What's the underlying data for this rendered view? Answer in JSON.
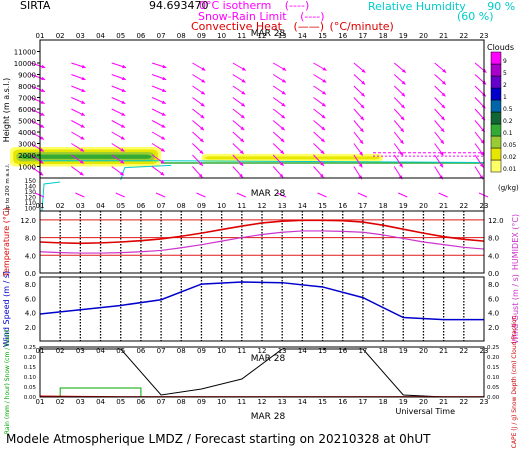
{
  "header": {
    "site": "SIRTA",
    "coords": "94.693470",
    "legend_isotherm": "0°C isotherm",
    "legend_isotherm_style": "(----)",
    "legend_snowrain": "Snow-Rain Limit",
    "legend_snowrain_style": "(----)",
    "legend_conv": "Convective Heat",
    "legend_conv_style": "(——)",
    "legend_conv_unit": "(°C/minute)",
    "legend_rh": "Relative Humidity",
    "legend_rh_90": "90 %",
    "legend_rh_60": "(60 %)"
  },
  "footer": "Modele Atmospherique LMDZ / Forecast starting on 20210328 at 0hUT",
  "xaxis": {
    "hours": [
      "01",
      "02",
      "03",
      "04",
      "05",
      "06",
      "07",
      "08",
      "09",
      "10",
      "11",
      "12",
      "13",
      "14",
      "15",
      "16",
      "17",
      "18",
      "19",
      "20",
      "21",
      "22",
      "23"
    ],
    "date_label": "MAR 28",
    "bottom_label": "Universal Time"
  },
  "colors": {
    "wind": "#ff00ff",
    "temperature": "#dd0000",
    "humidex": "#cc33cc",
    "wind_speed": "#0000cc",
    "rain": "#00aa00",
    "snow": "#0000cc",
    "cloud_fraction": "#000000",
    "cape": "#cc0000",
    "rh": "#00cccc"
  },
  "chart_data": [
    {
      "type": "heatmap",
      "panel": "cloud-height",
      "ylabel": "Height (m a.s.l.)",
      "ylabel_low": "Up to 200 m a.s.l.",
      "yticks": [
        1000,
        2000,
        3000,
        4000,
        5000,
        6000,
        7000,
        8000,
        9000,
        10000,
        11000
      ],
      "yticks_low": [
        100,
        110,
        120,
        130,
        140,
        150
      ],
      "ylim": [
        0,
        12000
      ],
      "cloud_layers": [
        {
          "hour_start": 1,
          "hour_end": 7,
          "base_m": 1000,
          "top_m": 2700,
          "core_g_kg": 0.2
        },
        {
          "hour_start": 9,
          "hour_end": 18,
          "base_m": 1400,
          "top_m": 2100,
          "core_g_kg": 0.1
        }
      ],
      "colorbar": {
        "title": "Clouds",
        "unit": "(g/kg)",
        "ticks": [
          "0.01",
          "0.02",
          "0.05",
          "0.1",
          "0.2",
          "0.5",
          "1",
          "2",
          "5",
          "9"
        ],
        "colors": [
          "#ffff66",
          "#e6e600",
          "#99cc33",
          "#33aa33",
          "#116633",
          "#0066aa",
          "#0000cc",
          "#6600cc",
          "#aa00cc",
          "#ff00ff"
        ]
      }
    },
    {
      "type": "line",
      "panel": "temperature",
      "ylabel": "Temperature (°C)",
      "ylabel_right": "HUMIDEX (°C)",
      "yticks": [
        "0.0",
        "4.0",
        "8.0",
        "12.0"
      ],
      "ylim": [
        0,
        14
      ],
      "x": [
        1,
        2,
        3,
        4,
        5,
        6,
        7,
        8,
        9,
        10,
        11,
        12,
        13,
        14,
        15,
        16,
        17,
        18,
        19,
        20,
        21,
        22,
        23
      ],
      "series": [
        {
          "name": "Temperature",
          "values": [
            7.0,
            6.8,
            6.7,
            6.8,
            7.0,
            7.3,
            7.7,
            8.3,
            9.0,
            9.8,
            10.6,
            11.3,
            11.7,
            11.9,
            11.9,
            11.8,
            11.5,
            10.8,
            9.9,
            9.0,
            8.2,
            7.6,
            7.2
          ]
        },
        {
          "name": "HUMIDEX",
          "values": [
            4.8,
            4.6,
            4.5,
            4.5,
            4.6,
            4.8,
            5.1,
            5.7,
            6.4,
            7.2,
            8.0,
            8.7,
            9.2,
            9.5,
            9.5,
            9.4,
            9.2,
            8.6,
            7.8,
            7.0,
            6.4,
            5.8,
            5.4
          ]
        }
      ]
    },
    {
      "type": "line",
      "panel": "wind-speed",
      "ylabel": "Wind Speed (m / s)",
      "ylabel_right": "Wind Gust (m / s)",
      "yticks": [
        "2.0",
        "4.0",
        "6.0",
        "8.0"
      ],
      "ylim": [
        0,
        9
      ],
      "x": [
        1,
        3,
        5,
        7,
        9,
        11,
        13,
        15,
        17,
        19,
        21,
        23
      ],
      "series": [
        {
          "name": "Wind Speed",
          "values": [
            3.8,
            4.4,
            5.0,
            5.8,
            8.0,
            8.3,
            8.2,
            7.6,
            6.1,
            3.3,
            3.0,
            3.0
          ]
        }
      ]
    },
    {
      "type": "line",
      "panel": "precipitation",
      "ylabel": "Rain (mm / hour) Snow (cm / hour)",
      "ylabel_right": "CAPE (J / g) Snow Depth (cm) Cloud Fraction",
      "yticks": [
        "0.00",
        "0.05",
        "0.10",
        "0.15",
        "0.20",
        "0.25"
      ],
      "ylim": [
        0,
        0.25
      ],
      "x": [
        1,
        3,
        5,
        7,
        9,
        11,
        13,
        15,
        17,
        19,
        21,
        23
      ],
      "series": [
        {
          "name": "Cloud Fraction",
          "values": [
            0.24,
            0.24,
            0.24,
            0.01,
            0.04,
            0.09,
            0.24,
            0.24,
            0.24,
            0.01,
            0.0,
            0.0
          ]
        },
        {
          "name": "Rain",
          "bars": [
            [
              2,
              6,
              0.045
            ]
          ]
        },
        {
          "name": "CAPE",
          "values": [
            0.005,
            0.003,
            0.002,
            0.002,
            0.002,
            0.002,
            0.002,
            0.002,
            0.002,
            0.002,
            0.002,
            0.002
          ]
        }
      ]
    }
  ]
}
